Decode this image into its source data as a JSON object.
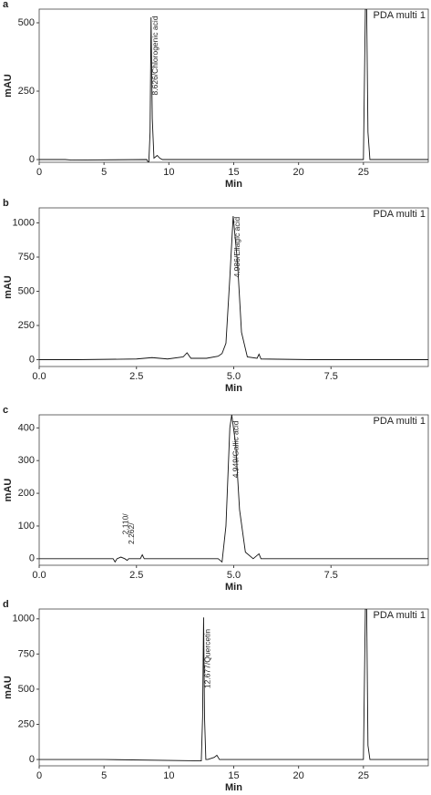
{
  "chart_data": [
    {
      "type": "line",
      "label": "a",
      "legend_text": "PDA multi 1",
      "x_label": "Min",
      "y_label": "mAU",
      "color": "#111111",
      "x": [
        0,
        2,
        2.5,
        8.3,
        8.45,
        8.55,
        8.626,
        8.72,
        8.85,
        9.1,
        9.3,
        9.5,
        10,
        15,
        20,
        25,
        25.15,
        25.25,
        25.35,
        25.5,
        30
      ],
      "y": [
        0,
        0,
        -2,
        0,
        -15,
        100,
        520,
        150,
        5,
        15,
        5,
        0,
        0,
        0,
        0,
        0,
        550,
        550,
        100,
        0,
        0
      ],
      "xlim": [
        0,
        30
      ],
      "ylim": [
        -10,
        550
      ],
      "xticks": [
        0,
        5,
        10,
        15,
        20,
        25
      ],
      "yticks": [
        0,
        250,
        500
      ],
      "annotations": [
        {
          "text": "8.626/Chlorogenic acid",
          "x": 8.626,
          "y": 525
        }
      ]
    },
    {
      "type": "line",
      "label": "b",
      "legend_text": "PDA multi 1",
      "x_label": "Min",
      "y_label": "mAU",
      "color": "#111111",
      "x": [
        0,
        1,
        2.5,
        2.9,
        3.3,
        3.7,
        3.8,
        3.9,
        4.3,
        4.6,
        4.7,
        4.8,
        4.9,
        4.986,
        5.1,
        5.2,
        5.35,
        5.6,
        5.65,
        5.7,
        7,
        10
      ],
      "y": [
        0,
        0,
        5,
        15,
        5,
        20,
        50,
        10,
        10,
        25,
        45,
        120,
        600,
        1050,
        700,
        200,
        20,
        10,
        40,
        5,
        0,
        0
      ],
      "xlim": [
        0,
        10
      ],
      "ylim": [
        -50,
        1110
      ],
      "xticks": [
        {
          "value": 0,
          "label": "0.0"
        },
        2.5,
        {
          "value": 5,
          "label": "5.0"
        },
        7.5
      ],
      "yticks": [
        0,
        250,
        500,
        750,
        1000
      ],
      "annotations": [
        {
          "text": "4.986/Ellagic acid",
          "x": 4.986,
          "y": 1045
        }
      ]
    },
    {
      "type": "line",
      "label": "c",
      "legend_text": "PDA multi 1",
      "x_label": "Min",
      "y_label": "mAU",
      "color": "#111111",
      "x": [
        0,
        1.9,
        1.95,
        2.0,
        2.1,
        2.2,
        2.262,
        2.3,
        2.6,
        2.65,
        2.7,
        4,
        4.6,
        4.7,
        4.8,
        4.9,
        4.949,
        5.05,
        5.15,
        5.3,
        5.5,
        5.65,
        5.7,
        5.75,
        10
      ],
      "y": [
        0,
        0,
        -10,
        0,
        5,
        0,
        -5,
        0,
        0,
        12,
        0,
        0,
        0,
        -10,
        100,
        400,
        440,
        350,
        150,
        20,
        0,
        15,
        0,
        0,
        0
      ],
      "xlim": [
        0,
        10
      ],
      "ylim": [
        -20,
        440
      ],
      "xticks": [
        {
          "value": 0,
          "label": "0.0"
        },
        2.5,
        {
          "value": 5,
          "label": "5.0"
        },
        7.5
      ],
      "yticks": [
        0,
        100,
        200,
        300,
        400
      ],
      "annotations": [
        {
          "text": "2.110/",
          "x": 2.11,
          "y": 138
        },
        {
          "text": "2.262/",
          "x": 2.262,
          "y": 110
        },
        {
          "text": "4.949/Gallic acid",
          "x": 4.949,
          "y": 422
        }
      ]
    },
    {
      "type": "line",
      "label": "d",
      "legend_text": "PDA multi 1",
      "x_label": "Min",
      "y_label": "mAU",
      "color": "#111111",
      "x": [
        0,
        5,
        12.5,
        12.6,
        12.677,
        12.75,
        12.85,
        13,
        13.5,
        13.7,
        13.9,
        15,
        25,
        25.15,
        25.25,
        25.35,
        25.5,
        30
      ],
      "y": [
        0,
        0,
        -10,
        300,
        1010,
        300,
        0,
        0,
        15,
        30,
        0,
        0,
        0,
        1070,
        1070,
        100,
        0,
        0
      ],
      "xlim": [
        0,
        30
      ],
      "ylim": [
        -45,
        1070
      ],
      "xticks": [
        0,
        5,
        10,
        15,
        20,
        25
      ],
      "yticks": [
        0,
        250,
        500,
        750,
        1000
      ],
      "annotations": [
        {
          "text": "12.677/Quercetin",
          "x": 12.677,
          "y": 928
        }
      ]
    }
  ]
}
